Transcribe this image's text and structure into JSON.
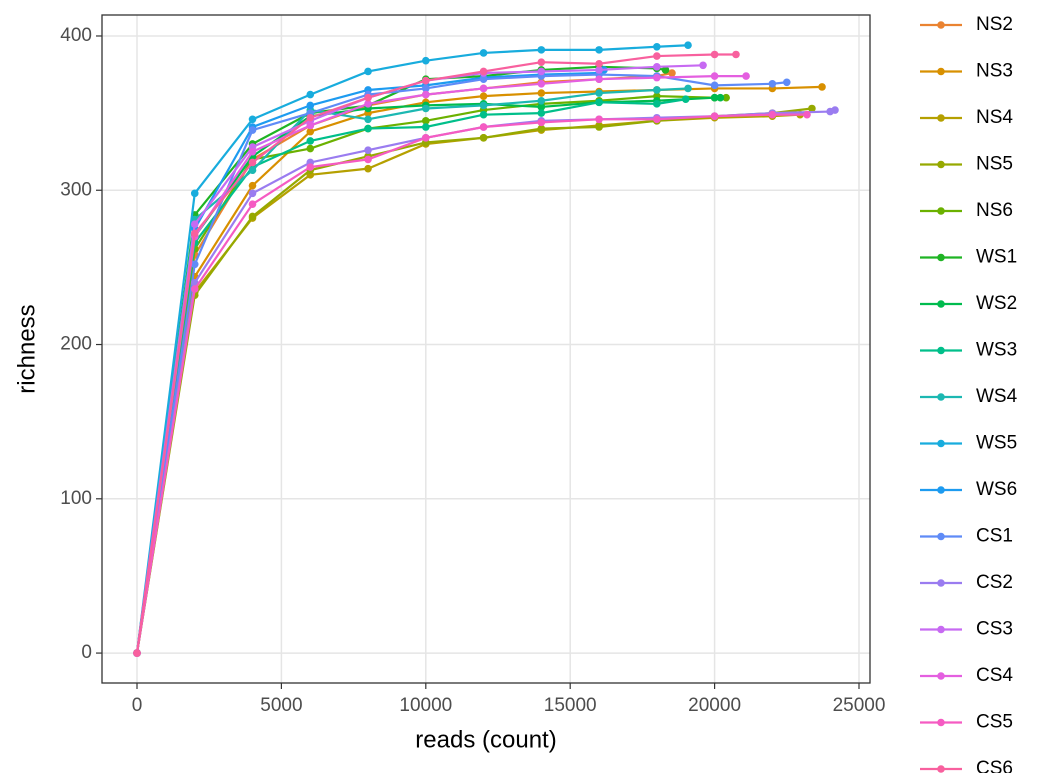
{
  "chart_data": {
    "type": "line",
    "x_label": "reads (count)",
    "y_label": "richness",
    "xlim": [
      -1212,
      25381
    ],
    "ylim": [
      -19.4,
      413.6
    ],
    "xticks": [
      0,
      5000,
      10000,
      15000,
      20000,
      25000
    ],
    "yticks": [
      0,
      100,
      200,
      300,
      400
    ],
    "grid": true,
    "series": [
      {
        "name": "NS2",
        "color": "#EA8331",
        "x": [
          0,
          2000,
          4000,
          6000,
          8000,
          10000,
          12000,
          14000,
          16000,
          18000,
          18525
        ],
        "values": [
          0,
          258,
          320,
          342,
          355,
          362,
          366,
          370,
          372,
          374,
          376
        ]
      },
      {
        "name": "NS3",
        "color": "#D89000",
        "x": [
          0,
          2000,
          4000,
          6000,
          8000,
          10000,
          12000,
          14000,
          16000,
          18000,
          20000,
          22000,
          23720
        ],
        "values": [
          0,
          244,
          303,
          338,
          350,
          357,
          361,
          363,
          364,
          365,
          366,
          366,
          367
        ]
      },
      {
        "name": "NS4",
        "color": "#B5A000",
        "x": [
          0,
          2000,
          4000,
          6000,
          8000,
          10000,
          12000,
          14000,
          16000,
          18000,
          20000,
          22000,
          22960
        ],
        "values": [
          0,
          234,
          282,
          310,
          314,
          330,
          334,
          339,
          342,
          345,
          347,
          348,
          349
        ]
      },
      {
        "name": "NS5",
        "color": "#96A900",
        "x": [
          0,
          2000,
          4000,
          6000,
          8000,
          10000,
          12000,
          14000,
          16000,
          18000,
          20000,
          22000,
          23370
        ],
        "values": [
          0,
          232,
          283,
          313,
          322,
          331,
          334,
          340,
          341,
          345,
          348,
          350,
          353
        ]
      },
      {
        "name": "NS6",
        "color": "#6BB100",
        "x": [
          0,
          2000,
          4000,
          6000,
          8000,
          10000,
          12000,
          14000,
          16000,
          18000,
          20000,
          20400
        ],
        "values": [
          0,
          262,
          320,
          327,
          340,
          345,
          352,
          356,
          358,
          361,
          360,
          360
        ]
      },
      {
        "name": "WS1",
        "color": "#1FB424",
        "x": [
          0,
          2000,
          4000,
          6000,
          8000,
          10000,
          12000,
          14000,
          16000,
          18000,
          18300
        ],
        "values": [
          0,
          284,
          330,
          350,
          355,
          372,
          374,
          378,
          380,
          379,
          378
        ]
      },
      {
        "name": "WS2",
        "color": "#00BB4E",
        "x": [
          0,
          2000,
          4000,
          6000,
          8000,
          10000,
          12000,
          14000,
          16000,
          18000,
          20000,
          20200
        ],
        "values": [
          0,
          270,
          322,
          348,
          353,
          355,
          356,
          354,
          357,
          358,
          360,
          360
        ]
      },
      {
        "name": "WS3",
        "color": "#00BF8A",
        "x": [
          0,
          2000,
          4000,
          6000,
          8000,
          10000,
          12000,
          14000,
          16000,
          18000,
          19000
        ],
        "values": [
          0,
          266,
          315,
          332,
          340,
          341,
          349,
          350,
          357,
          356,
          359
        ]
      },
      {
        "name": "WS4",
        "color": "#1CB8B2",
        "x": [
          0,
          2000,
          4000,
          6000,
          8000,
          10000,
          12000,
          14000,
          16000,
          18000,
          19080
        ],
        "values": [
          0,
          281,
          313,
          352,
          346,
          353,
          355,
          358,
          363,
          365,
          366
        ]
      },
      {
        "name": "WS5",
        "color": "#18ACDD",
        "x": [
          0,
          2000,
          4000,
          6000,
          8000,
          10000,
          12000,
          14000,
          16000,
          18000,
          19080
        ],
        "values": [
          0,
          298,
          346,
          362,
          377,
          384,
          389,
          391,
          391,
          393,
          394
        ]
      },
      {
        "name": "WS6",
        "color": "#1D9BF0",
        "x": [
          0,
          2000,
          4000,
          6000,
          8000,
          10000,
          12000,
          14000,
          16000,
          16170
        ],
        "values": [
          0,
          275,
          341,
          355,
          365,
          368,
          373,
          375,
          376,
          378
        ]
      },
      {
        "name": "CS1",
        "color": "#5F8BF7",
        "x": [
          0,
          2000,
          4000,
          6000,
          8000,
          10000,
          12000,
          14000,
          16000,
          18000,
          20000,
          22000,
          22500
        ],
        "values": [
          0,
          252,
          339,
          350,
          362,
          366,
          372,
          374,
          375,
          374,
          368,
          369,
          370
        ]
      },
      {
        "name": "CS2",
        "color": "#9A7CF0",
        "x": [
          0,
          2000,
          4000,
          6000,
          8000,
          10000,
          12000,
          14000,
          16000,
          18000,
          20000,
          22000,
          24000,
          24170
        ],
        "values": [
          0,
          240,
          298,
          318,
          326,
          334,
          341,
          345,
          346,
          347,
          348,
          350,
          351,
          352
        ]
      },
      {
        "name": "CS3",
        "color": "#C76AF2",
        "x": [
          0,
          2000,
          4000,
          6000,
          8000,
          10000,
          12000,
          14000,
          16000,
          18000,
          19600
        ],
        "values": [
          0,
          278,
          328,
          345,
          360,
          371,
          376,
          377,
          378,
          380,
          381
        ]
      },
      {
        "name": "CS4",
        "color": "#E45FE0",
        "x": [
          0,
          2000,
          4000,
          6000,
          8000,
          10000,
          12000,
          14000,
          16000,
          18000,
          20000,
          21090
        ],
        "values": [
          0,
          270,
          325,
          342,
          356,
          362,
          366,
          369,
          372,
          373,
          374,
          374
        ]
      },
      {
        "name": "CS5",
        "color": "#F55BC2",
        "x": [
          0,
          2000,
          4000,
          6000,
          8000,
          10000,
          12000,
          14000,
          16000,
          18000,
          20000,
          22000,
          23200
        ],
        "values": [
          0,
          236,
          291,
          315,
          320,
          334,
          341,
          344,
          346,
          346,
          348,
          349,
          349
        ]
      },
      {
        "name": "CS6",
        "color": "#F8609E",
        "x": [
          0,
          2000,
          4000,
          6000,
          8000,
          10000,
          12000,
          14000,
          16000,
          18000,
          20000,
          20740
        ],
        "values": [
          0,
          272,
          318,
          347,
          360,
          371,
          377,
          383,
          382,
          387,
          388,
          388
        ]
      }
    ]
  }
}
